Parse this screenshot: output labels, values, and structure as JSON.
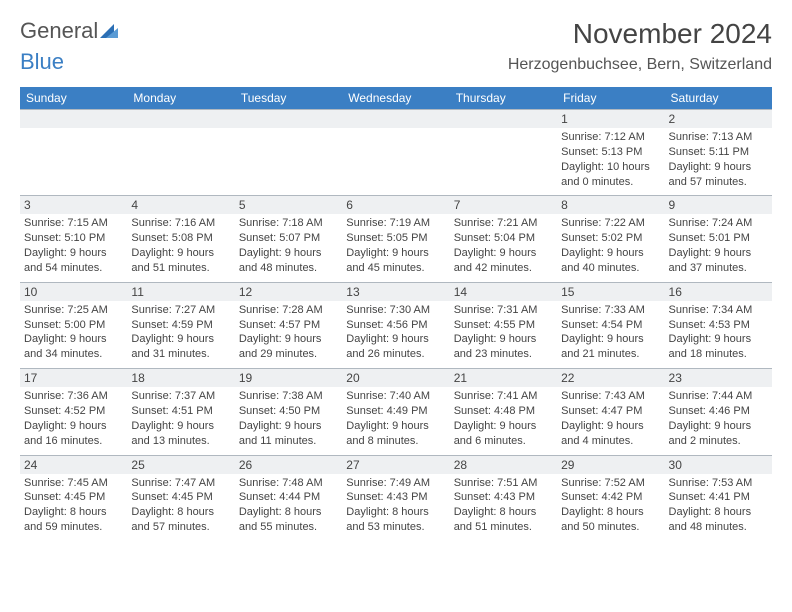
{
  "logo": {
    "part1": "General",
    "part2": "Blue"
  },
  "title": "November 2024",
  "location": "Herzogenbuchsee, Bern, Switzerland",
  "colors": {
    "header_bg": "#3b7fc4",
    "header_fg": "#ffffff",
    "daynum_bg": "#eef0f2",
    "border": "#b0b8c0",
    "text": "#444444"
  },
  "weekdays": [
    "Sunday",
    "Monday",
    "Tuesday",
    "Wednesday",
    "Thursday",
    "Friday",
    "Saturday"
  ],
  "weeks": [
    [
      null,
      null,
      null,
      null,
      null,
      {
        "num": "1",
        "sunrise": "Sunrise: 7:12 AM",
        "sunset": "Sunset: 5:13 PM",
        "daylight1": "Daylight: 10 hours",
        "daylight2": "and 0 minutes."
      },
      {
        "num": "2",
        "sunrise": "Sunrise: 7:13 AM",
        "sunset": "Sunset: 5:11 PM",
        "daylight1": "Daylight: 9 hours",
        "daylight2": "and 57 minutes."
      }
    ],
    [
      {
        "num": "3",
        "sunrise": "Sunrise: 7:15 AM",
        "sunset": "Sunset: 5:10 PM",
        "daylight1": "Daylight: 9 hours",
        "daylight2": "and 54 minutes."
      },
      {
        "num": "4",
        "sunrise": "Sunrise: 7:16 AM",
        "sunset": "Sunset: 5:08 PM",
        "daylight1": "Daylight: 9 hours",
        "daylight2": "and 51 minutes."
      },
      {
        "num": "5",
        "sunrise": "Sunrise: 7:18 AM",
        "sunset": "Sunset: 5:07 PM",
        "daylight1": "Daylight: 9 hours",
        "daylight2": "and 48 minutes."
      },
      {
        "num": "6",
        "sunrise": "Sunrise: 7:19 AM",
        "sunset": "Sunset: 5:05 PM",
        "daylight1": "Daylight: 9 hours",
        "daylight2": "and 45 minutes."
      },
      {
        "num": "7",
        "sunrise": "Sunrise: 7:21 AM",
        "sunset": "Sunset: 5:04 PM",
        "daylight1": "Daylight: 9 hours",
        "daylight2": "and 42 minutes."
      },
      {
        "num": "8",
        "sunrise": "Sunrise: 7:22 AM",
        "sunset": "Sunset: 5:02 PM",
        "daylight1": "Daylight: 9 hours",
        "daylight2": "and 40 minutes."
      },
      {
        "num": "9",
        "sunrise": "Sunrise: 7:24 AM",
        "sunset": "Sunset: 5:01 PM",
        "daylight1": "Daylight: 9 hours",
        "daylight2": "and 37 minutes."
      }
    ],
    [
      {
        "num": "10",
        "sunrise": "Sunrise: 7:25 AM",
        "sunset": "Sunset: 5:00 PM",
        "daylight1": "Daylight: 9 hours",
        "daylight2": "and 34 minutes."
      },
      {
        "num": "11",
        "sunrise": "Sunrise: 7:27 AM",
        "sunset": "Sunset: 4:59 PM",
        "daylight1": "Daylight: 9 hours",
        "daylight2": "and 31 minutes."
      },
      {
        "num": "12",
        "sunrise": "Sunrise: 7:28 AM",
        "sunset": "Sunset: 4:57 PM",
        "daylight1": "Daylight: 9 hours",
        "daylight2": "and 29 minutes."
      },
      {
        "num": "13",
        "sunrise": "Sunrise: 7:30 AM",
        "sunset": "Sunset: 4:56 PM",
        "daylight1": "Daylight: 9 hours",
        "daylight2": "and 26 minutes."
      },
      {
        "num": "14",
        "sunrise": "Sunrise: 7:31 AM",
        "sunset": "Sunset: 4:55 PM",
        "daylight1": "Daylight: 9 hours",
        "daylight2": "and 23 minutes."
      },
      {
        "num": "15",
        "sunrise": "Sunrise: 7:33 AM",
        "sunset": "Sunset: 4:54 PM",
        "daylight1": "Daylight: 9 hours",
        "daylight2": "and 21 minutes."
      },
      {
        "num": "16",
        "sunrise": "Sunrise: 7:34 AM",
        "sunset": "Sunset: 4:53 PM",
        "daylight1": "Daylight: 9 hours",
        "daylight2": "and 18 minutes."
      }
    ],
    [
      {
        "num": "17",
        "sunrise": "Sunrise: 7:36 AM",
        "sunset": "Sunset: 4:52 PM",
        "daylight1": "Daylight: 9 hours",
        "daylight2": "and 16 minutes."
      },
      {
        "num": "18",
        "sunrise": "Sunrise: 7:37 AM",
        "sunset": "Sunset: 4:51 PM",
        "daylight1": "Daylight: 9 hours",
        "daylight2": "and 13 minutes."
      },
      {
        "num": "19",
        "sunrise": "Sunrise: 7:38 AM",
        "sunset": "Sunset: 4:50 PM",
        "daylight1": "Daylight: 9 hours",
        "daylight2": "and 11 minutes."
      },
      {
        "num": "20",
        "sunrise": "Sunrise: 7:40 AM",
        "sunset": "Sunset: 4:49 PM",
        "daylight1": "Daylight: 9 hours",
        "daylight2": "and 8 minutes."
      },
      {
        "num": "21",
        "sunrise": "Sunrise: 7:41 AM",
        "sunset": "Sunset: 4:48 PM",
        "daylight1": "Daylight: 9 hours",
        "daylight2": "and 6 minutes."
      },
      {
        "num": "22",
        "sunrise": "Sunrise: 7:43 AM",
        "sunset": "Sunset: 4:47 PM",
        "daylight1": "Daylight: 9 hours",
        "daylight2": "and 4 minutes."
      },
      {
        "num": "23",
        "sunrise": "Sunrise: 7:44 AM",
        "sunset": "Sunset: 4:46 PM",
        "daylight1": "Daylight: 9 hours",
        "daylight2": "and 2 minutes."
      }
    ],
    [
      {
        "num": "24",
        "sunrise": "Sunrise: 7:45 AM",
        "sunset": "Sunset: 4:45 PM",
        "daylight1": "Daylight: 8 hours",
        "daylight2": "and 59 minutes."
      },
      {
        "num": "25",
        "sunrise": "Sunrise: 7:47 AM",
        "sunset": "Sunset: 4:45 PM",
        "daylight1": "Daylight: 8 hours",
        "daylight2": "and 57 minutes."
      },
      {
        "num": "26",
        "sunrise": "Sunrise: 7:48 AM",
        "sunset": "Sunset: 4:44 PM",
        "daylight1": "Daylight: 8 hours",
        "daylight2": "and 55 minutes."
      },
      {
        "num": "27",
        "sunrise": "Sunrise: 7:49 AM",
        "sunset": "Sunset: 4:43 PM",
        "daylight1": "Daylight: 8 hours",
        "daylight2": "and 53 minutes."
      },
      {
        "num": "28",
        "sunrise": "Sunrise: 7:51 AM",
        "sunset": "Sunset: 4:43 PM",
        "daylight1": "Daylight: 8 hours",
        "daylight2": "and 51 minutes."
      },
      {
        "num": "29",
        "sunrise": "Sunrise: 7:52 AM",
        "sunset": "Sunset: 4:42 PM",
        "daylight1": "Daylight: 8 hours",
        "daylight2": "and 50 minutes."
      },
      {
        "num": "30",
        "sunrise": "Sunrise: 7:53 AM",
        "sunset": "Sunset: 4:41 PM",
        "daylight1": "Daylight: 8 hours",
        "daylight2": "and 48 minutes."
      }
    ]
  ]
}
